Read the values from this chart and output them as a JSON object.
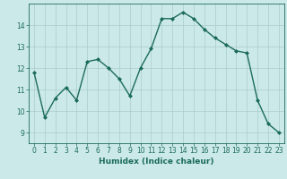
{
  "x": [
    0,
    1,
    2,
    3,
    4,
    5,
    6,
    7,
    8,
    9,
    10,
    11,
    12,
    13,
    14,
    15,
    16,
    17,
    18,
    19,
    20,
    21,
    22,
    23
  ],
  "y": [
    11.8,
    9.7,
    10.6,
    11.1,
    10.5,
    12.3,
    12.4,
    12.0,
    11.5,
    10.7,
    12.0,
    12.9,
    14.3,
    14.3,
    14.6,
    14.3,
    13.8,
    13.4,
    13.1,
    12.8,
    12.7,
    10.5,
    9.4,
    9.0
  ],
  "line_color": "#1a6b5a",
  "marker": "D",
  "markersize": 2.0,
  "linewidth": 1.0,
  "bg_color": "#cce9e9",
  "grid_color": "#aacccc",
  "xlabel": "Humidex (Indice chaleur)",
  "xlim": [
    -0.5,
    23.5
  ],
  "ylim": [
    8.5,
    15.0
  ],
  "yticks": [
    9,
    10,
    11,
    12,
    13,
    14
  ],
  "xtick_labels": [
    "0",
    "1",
    "2",
    "3",
    "4",
    "5",
    "6",
    "7",
    "8",
    "9",
    "10",
    "11",
    "12",
    "13",
    "14",
    "15",
    "16",
    "17",
    "18",
    "19",
    "20",
    "21",
    "22",
    "23"
  ],
  "tick_color": "#1a6b5a",
  "label_color": "#1a6b5a",
  "xlabel_fontsize": 6.5,
  "tick_fontsize": 5.5
}
